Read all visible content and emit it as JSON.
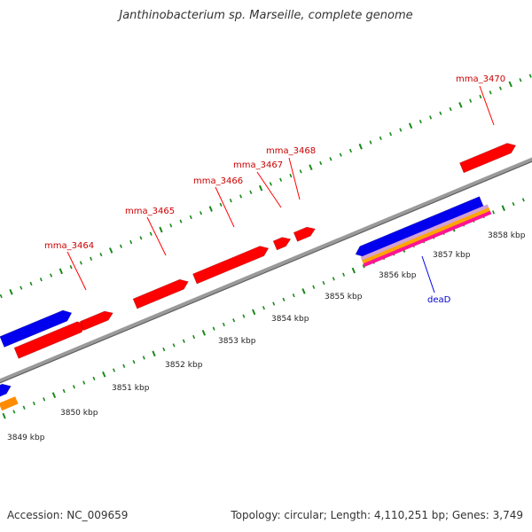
{
  "title": "Janthinobacterium sp. Marseille, complete genome",
  "footer": {
    "accession": "Accession: NC_009659",
    "topology": "Topology: circular; Length: 4,110,251 bp; Genes: 3,749"
  },
  "colors": {
    "cds": "#ff0000",
    "cds_blue": "#0000ee",
    "orange": "#ff8c00",
    "pink": "#ff1493",
    "backbone": "#909090",
    "tick": "#1a8a1a",
    "gene_label": "#cc0000",
    "blue_label": "#0000cc"
  },
  "scale_labels": [
    "3849 kbp",
    "3850 kbp",
    "3851 kbp",
    "3852 kbp",
    "3853 kbp",
    "3854 kbp",
    "3855 kbp",
    "3856 kbp",
    "3857 kbp",
    "3858 kbp"
  ],
  "gene_labels": [
    "mma_3464",
    "mma_3465",
    "mma_3466",
    "mma_3467",
    "mma_3468",
    "mma_3470",
    "deaD"
  ]
}
